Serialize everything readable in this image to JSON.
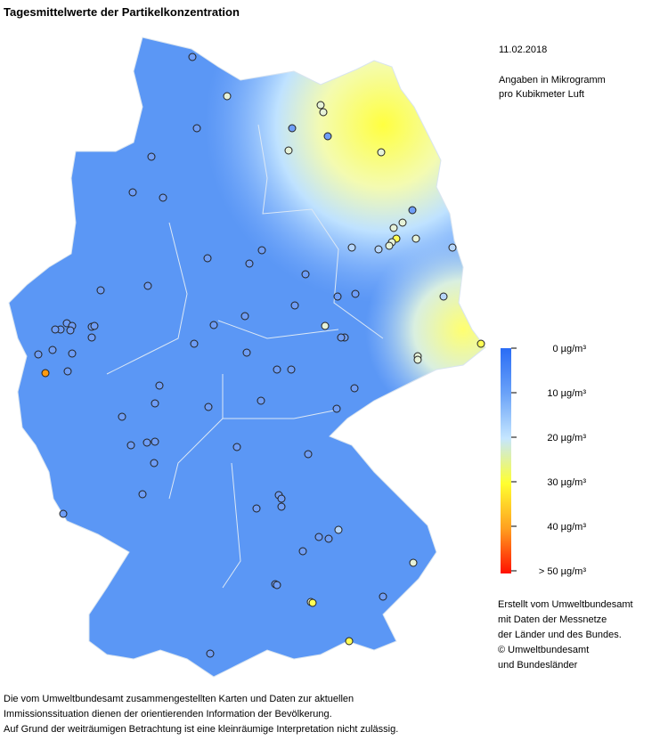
{
  "header": {
    "title": "Tagesmittelwerte der Partikelkonzentration"
  },
  "info": {
    "date": "11.02.2018",
    "unit_lines": [
      "Angaben in Mikrogramm",
      "pro Kubikmeter Luft"
    ]
  },
  "legend": {
    "labels": [
      "0 µg/m³",
      "10 µg/m³",
      "20 µg/m³",
      "30 µg/m³",
      "40 µg/m³",
      "> 50 µg/m³"
    ]
  },
  "credits": {
    "lines": [
      "Erstellt vom Umweltbundesamt",
      "mit Daten der Messnetze",
      "der Länder und des Bundes.",
      "© Umweltbundesamt",
      "und Bundesländer"
    ]
  },
  "footer": {
    "lines": [
      "Die vom Umweltbundesamt zusammengestellten Karten und Daten zur aktuellen",
      "Immissionssituation dienen der orientierenden Information der Bevölkerung.",
      "Auf Grund der weiträumigen Betrachtung ist eine kleinräumige Interpretation nicht zulässig."
    ]
  }
}
